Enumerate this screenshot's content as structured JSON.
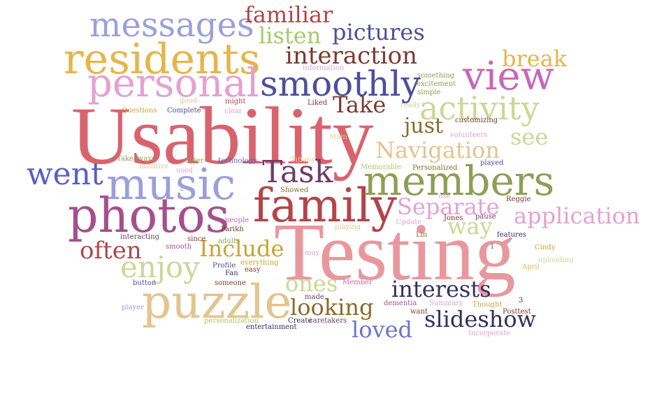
{
  "words": [
    {
      "text": "Usability",
      "color": "#d9636d"
    },
    {
      "text": "Testing",
      "color": "#e8989c"
    },
    {
      "text": "family",
      "color": "#b2454a"
    },
    {
      "text": "photos",
      "color": "#a5508d"
    },
    {
      "text": "music",
      "color": "#9b9fdb"
    },
    {
      "text": "members",
      "color": "#8f9e55"
    },
    {
      "text": "puzzle",
      "color": "#e4c48e"
    },
    {
      "text": "residents",
      "color": "#e6b54a"
    },
    {
      "text": "personal",
      "color": "#e3a2d1"
    },
    {
      "text": "messages",
      "color": "#9b9fdb"
    },
    {
      "text": "view",
      "color": "#c966b8"
    },
    {
      "text": "smoothly",
      "color": "#4d4f9b"
    },
    {
      "text": "activity",
      "color": "#cbd796"
    },
    {
      "text": "went",
      "color": "#5a5ec4"
    },
    {
      "text": "Task",
      "color": "#6e3c6a"
    },
    {
      "text": "enjoy",
      "color": "#cbd796"
    },
    {
      "text": "often",
      "color": "#b2454a"
    },
    {
      "text": "Separate",
      "color": "#e3a2d1"
    },
    {
      "text": "application",
      "color": "#e3a2d1"
    },
    {
      "text": "Navigation",
      "color": "#e4c48e"
    },
    {
      "text": "interaction",
      "color": "#7a3a2e"
    },
    {
      "text": "familiar",
      "color": "#b2454a"
    },
    {
      "text": "pictures",
      "color": "#4d4f9b"
    },
    {
      "text": "listen",
      "color": "#a8c86a"
    },
    {
      "text": "break",
      "color": "#e6b54a"
    },
    {
      "text": "Take",
      "color": "#7a3a2e"
    },
    {
      "text": "just",
      "color": "#8a6a2a"
    },
    {
      "text": "see",
      "color": "#cbd796"
    },
    {
      "text": "way",
      "color": "#cbd796"
    },
    {
      "text": "Include",
      "color": "#c9a332"
    },
    {
      "text": "ones",
      "color": "#cbd796"
    },
    {
      "text": "interests",
      "color": "#2f3160"
    },
    {
      "text": "looking",
      "color": "#8a6a2a"
    },
    {
      "text": "slideshow",
      "color": "#2f3160"
    },
    {
      "text": "loved",
      "color": "#6e72cf"
    },
    {
      "text": "information",
      "color": "#e3a2d1"
    },
    {
      "text": "something",
      "color": "#8f9e55"
    },
    {
      "text": "excitement",
      "color": "#8f9e55"
    },
    {
      "text": "simple",
      "color": "#8f9e55"
    },
    {
      "text": "Liked",
      "color": "#7a3a2e"
    },
    {
      "text": "really",
      "color": "#e4c48e"
    },
    {
      "text": "customizing",
      "color": "#7a3a2e"
    },
    {
      "text": "volunteers",
      "color": "#e3a2d1"
    },
    {
      "text": "played",
      "color": "#4d4f9b"
    },
    {
      "text": "good",
      "color": "#e4c48e"
    },
    {
      "text": "might",
      "color": "#b2454a"
    },
    {
      "text": "Questions",
      "color": "#c9a332"
    },
    {
      "text": "Complete",
      "color": "#4d4f9b"
    },
    {
      "text": "clear",
      "color": "#e3a2d1"
    },
    {
      "text": "Main",
      "color": "#cbd796"
    },
    {
      "text": "Takeaways",
      "color": "#8f9e55"
    },
    {
      "text": "intuitive",
      "color": "#e4c48e"
    },
    {
      "text": "older",
      "color": "#8f9e55"
    },
    {
      "text": "technology",
      "color": "#5a5ec4"
    },
    {
      "text": "Tiffany",
      "color": "#e4c48e"
    },
    {
      "text": "Memorable",
      "color": "#a8c86a"
    },
    {
      "text": "Personalized",
      "color": "#8a6a2a"
    },
    {
      "text": "used",
      "color": "#e3a2d1"
    },
    {
      "text": "2",
      "color": "#9b9fdb"
    },
    {
      "text": "Showed",
      "color": "#8a6a2a"
    },
    {
      "text": "use",
      "color": "#e3a2d1"
    },
    {
      "text": "Reggie",
      "color": "#7a3a2e"
    },
    {
      "text": "people",
      "color": "#c966b8"
    },
    {
      "text": "Parikh",
      "color": "#7a3a2e"
    },
    {
      "text": "Update",
      "color": "#e3a2d1"
    },
    {
      "text": "Jones",
      "color": "#7a3a2e"
    },
    {
      "text": "pause",
      "color": "#6e3c6a"
    },
    {
      "text": "features",
      "color": "#2f3160"
    },
    {
      "text": "playing",
      "color": "#e4c48e"
    },
    {
      "text": "interacting",
      "color": "#6e3c6a"
    },
    {
      "text": "since",
      "color": "#7a3a2e"
    },
    {
      "text": "Lin",
      "color": "#8a6a2a"
    },
    {
      "text": "smooth",
      "color": "#a5508d"
    },
    {
      "text": "adults",
      "color": "#8f9e55"
    },
    {
      "text": "1",
      "color": "#4d4f9b"
    },
    {
      "text": "Cindy",
      "color": "#c9a332"
    },
    {
      "text": "may",
      "color": "#e3a2d1"
    },
    {
      "text": "Profile",
      "color": "#4d4f9b"
    },
    {
      "text": "everything",
      "color": "#c9a332"
    },
    {
      "text": "uploading",
      "color": "#cbd796"
    },
    {
      "text": "Fan",
      "color": "#2f3160"
    },
    {
      "text": "easy",
      "color": "#7a3a2e"
    },
    {
      "text": "April",
      "color": "#e6b54a"
    },
    {
      "text": "button",
      "color": "#4d4f9b"
    },
    {
      "text": "someone",
      "color": "#7a3a2e"
    },
    {
      "text": "Member",
      "color": "#c966b8"
    },
    {
      "text": "made",
      "color": "#6e3c6a"
    },
    {
      "text": "dementia",
      "color": "#a5508d"
    },
    {
      "text": "Summary",
      "color": "#e3a2d1"
    },
    {
      "text": "Thought",
      "color": "#c9a332"
    },
    {
      "text": "3",
      "color": "#2f3160"
    },
    {
      "text": "player",
      "color": "#9b9fdb"
    },
    {
      "text": "want",
      "color": "#7a3a2e"
    },
    {
      "text": "Posttest",
      "color": "#7a3a2e"
    },
    {
      "text": "personalization",
      "color": "#a8c86a"
    },
    {
      "text": "Create",
      "color": "#2f3160"
    },
    {
      "text": "caretakers",
      "color": "#6e3c6a"
    },
    {
      "text": "entertainment",
      "color": "#2f3160"
    },
    {
      "text": "Incorporate",
      "color": "#e3a2d1"
    }
  ]
}
